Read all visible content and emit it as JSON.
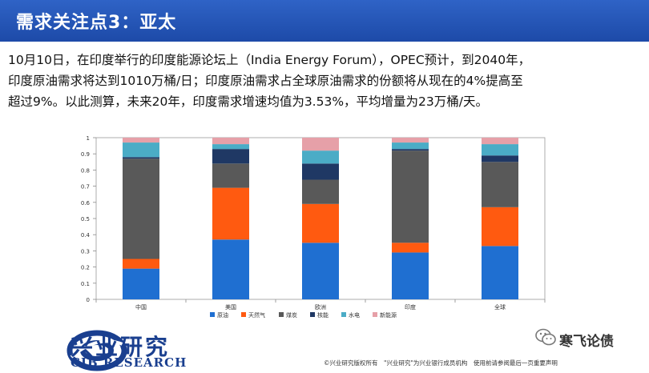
{
  "header": {
    "title": "需求关注点3：亚太"
  },
  "paragraph": {
    "lines": [
      "10月10日，在印度举行的印度能源论坛上（India Energy Forum），OPEC预计，到2040年，",
      "印度原油需求将达到1010万桶/日；印度原油需求占全球原油需求的份额将从现在的4%提高至",
      "超过9%。以此测算，未来20年，印度需求增速均值为3.53%，平均增量为23万桶/天。"
    ]
  },
  "chart_data": {
    "type": "bar",
    "stacked": true,
    "categories": [
      "中国",
      "美国",
      "欧洲",
      "印度",
      "全球"
    ],
    "series": [
      {
        "name": "原油",
        "color": "#1f6fd1",
        "values": [
          0.19,
          0.37,
          0.35,
          0.29,
          0.33
        ]
      },
      {
        "name": "天然气",
        "color": "#ff5a10",
        "values": [
          0.06,
          0.32,
          0.24,
          0.06,
          0.24
        ]
      },
      {
        "name": "煤炭",
        "color": "#595959",
        "values": [
          0.62,
          0.15,
          0.15,
          0.57,
          0.28
        ]
      },
      {
        "name": "核能",
        "color": "#1f3864",
        "values": [
          0.01,
          0.09,
          0.1,
          0.01,
          0.04
        ]
      },
      {
        "name": "水电",
        "color": "#4bacc6",
        "values": [
          0.09,
          0.03,
          0.08,
          0.04,
          0.07
        ]
      },
      {
        "name": "新能源",
        "color": "#e6a0a8",
        "values": [
          0.03,
          0.04,
          0.08,
          0.03,
          0.04
        ]
      }
    ],
    "y_ticks": [
      "0",
      "0.1",
      "0.2",
      "0.3",
      "0.4",
      "0.5",
      "0.6",
      "0.7",
      "0.8",
      "0.9",
      "1"
    ],
    "ylim": [
      0,
      1
    ],
    "grid": false,
    "legend_position": "bottom"
  },
  "branding": {
    "name_cn": "兴业研究",
    "name_en": "CIB RESEARCH",
    "colors": {
      "primary": "#1a3f8f"
    },
    "wechat_icon": "wechat-icon",
    "wechat_account": "寒飞论债"
  },
  "footer": {
    "note": "©兴业研究版权所有　\"兴业研究\"为兴业银行成员机构　使用前请参阅最后一页重要声明"
  }
}
